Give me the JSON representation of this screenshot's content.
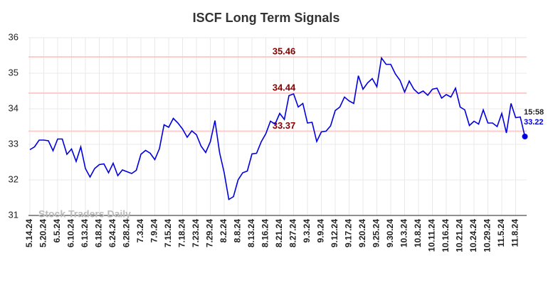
{
  "chart_data": {
    "type": "line",
    "title": "ISCF Long Term Signals",
    "categories": [
      "5.14.24",
      null,
      null,
      "5.20.24",
      null,
      null,
      "6.5.24",
      null,
      null,
      "6.10.24",
      null,
      null,
      "6.13.24",
      null,
      null,
      "6.18.24",
      null,
      null,
      "6.24.24",
      null,
      null,
      "6.28.24",
      null,
      null,
      "7.3.24",
      null,
      null,
      "7.9.24",
      null,
      null,
      "7.15.24",
      null,
      null,
      "7.18.24",
      null,
      null,
      "7.23.24",
      null,
      null,
      "7.29.24",
      null,
      null,
      "8.2.24",
      null,
      null,
      "8.8.24",
      null,
      null,
      "8.13.24",
      null,
      null,
      "8.16.24",
      null,
      null,
      "8.21.24",
      null,
      null,
      "8.27.24",
      null,
      null,
      "9.3.24",
      null,
      null,
      "9.9.24",
      null,
      null,
      "9.12.24",
      null,
      null,
      "9.17.24",
      null,
      null,
      "9.20.24",
      null,
      null,
      "9.25.24",
      null,
      null,
      "9.30.24",
      null,
      null,
      "10.3.24",
      null,
      null,
      "10.8.24",
      null,
      null,
      "10.11.24",
      null,
      null,
      "10.16.24",
      null,
      null,
      "10.21.24",
      null,
      null,
      "10.24.24",
      null,
      null,
      "10.29.24",
      null,
      null,
      "11.5.24",
      null,
      null,
      "11.8.24",
      null,
      null
    ],
    "series": [
      {
        "color": "#0000dd",
        "values": [
          32.85,
          32.93,
          33.12,
          33.12,
          33.1,
          32.82,
          33.15,
          33.15,
          32.72,
          32.87,
          32.52,
          32.93,
          32.32,
          32.08,
          32.32,
          32.43,
          32.45,
          32.2,
          32.47,
          32.12,
          32.28,
          32.23,
          32.18,
          32.27,
          32.72,
          32.83,
          32.75,
          32.57,
          32.88,
          33.55,
          33.48,
          33.73,
          33.6,
          33.43,
          33.2,
          33.38,
          33.27,
          32.95,
          32.77,
          33.07,
          33.67,
          32.77,
          32.2,
          31.45,
          31.53,
          32.0,
          32.2,
          32.25,
          32.73,
          32.75,
          33.07,
          33.3,
          33.65,
          33.57,
          33.87,
          33.7,
          34.37,
          34.42,
          34.05,
          34.15,
          33.6,
          33.62,
          33.08,
          33.35,
          33.37,
          33.52,
          33.95,
          34.05,
          34.33,
          34.22,
          34.15,
          34.93,
          34.55,
          34.73,
          34.85,
          34.62,
          35.43,
          35.25,
          35.25,
          34.98,
          34.8,
          34.47,
          34.78,
          34.55,
          34.43,
          34.5,
          34.38,
          34.55,
          34.58,
          34.3,
          34.4,
          34.33,
          34.58,
          34.05,
          33.97,
          33.53,
          33.65,
          33.57,
          33.97,
          33.6,
          33.6,
          33.5,
          33.87,
          33.32,
          34.15,
          33.75,
          33.77,
          33.22
        ]
      }
    ],
    "ylim": [
      31,
      36
    ],
    "yticks": [
      31,
      32,
      33,
      34,
      35,
      36
    ],
    "grid": true,
    "signal_lines": [
      35.46,
      34.44,
      33.37
    ],
    "signal_color": "#8b0000",
    "signal_line_color": "#ffcccc",
    "last_time": "15:58",
    "watermark": "Stock Traders Daily"
  }
}
